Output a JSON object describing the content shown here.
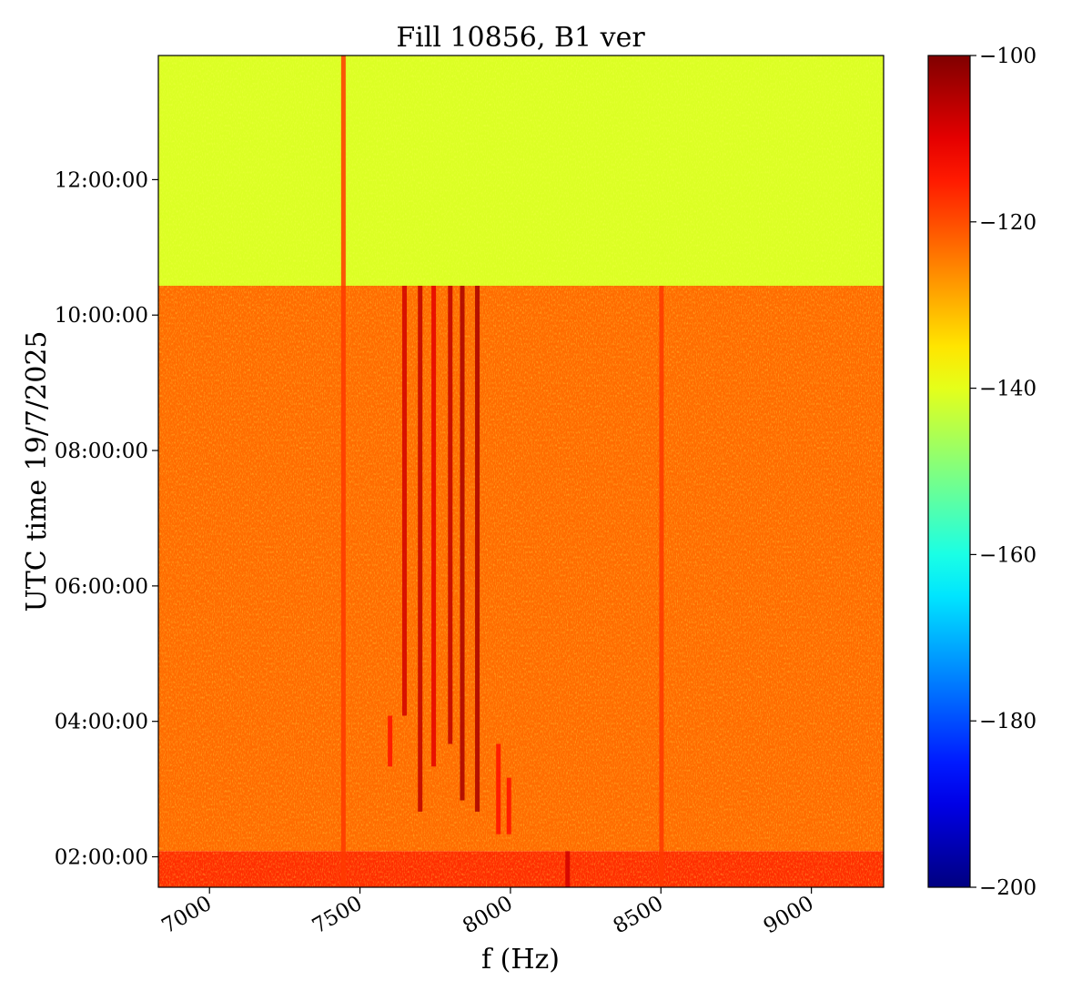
{
  "chart_data": {
    "type": "heatmap",
    "title": "Fill 10856, B1 ver",
    "xlabel": "f (Hz)",
    "ylabel": "UTC time 19/7/2025",
    "xlim": [
      6830,
      9240
    ],
    "ylim": [
      "01:33:00",
      "13:50:00"
    ],
    "x_ticks": [
      7000,
      7500,
      8000,
      8500,
      9000
    ],
    "x_tick_labels": [
      "7000",
      "7500",
      "8000",
      "8500",
      "9000"
    ],
    "x_tick_rotation": "30 degrees",
    "y_ticks": [
      "02:00:00",
      "04:00:00",
      "06:00:00",
      "08:00:00",
      "10:00:00",
      "12:00:00"
    ],
    "y_tick_labels": [
      "02:00:00",
      "04:00:00",
      "06:00:00",
      "08:00:00",
      "10:00:00",
      "12:00:00"
    ],
    "colormap": "jet",
    "colorbar": {
      "range": [
        -200,
        -100
      ],
      "ticks": [
        -100,
        -120,
        -140,
        -160,
        -180,
        -200
      ],
      "tick_labels": [
        "−100",
        "−120",
        "−140",
        "−160",
        "−180",
        "−200"
      ]
    },
    "background_regions": [
      {
        "t_start": "01:33:00",
        "t_end": "02:05:00",
        "level_db": -117
      },
      {
        "t_start": "02:05:00",
        "t_end": "10:26:00",
        "level_db": -123
      },
      {
        "t_start": "10:26:00",
        "t_end": "13:50:00",
        "level_db": -141
      }
    ],
    "lines": [
      {
        "f": 7445,
        "t_start": "01:33:00",
        "t_end": "13:50:00",
        "level_db": -118
      },
      {
        "f": 8502,
        "t_start": "01:33:00",
        "t_end": "10:26:00",
        "level_db": -118
      },
      {
        "f": 7648,
        "t_start": "04:05:00",
        "t_end": "10:26:00",
        "level_db": -108
      },
      {
        "f": 7700,
        "t_start": "02:40:00",
        "t_end": "10:26:00",
        "level_db": -106
      },
      {
        "f": 7745,
        "t_start": "03:20:00",
        "t_end": "10:26:00",
        "level_db": -110
      },
      {
        "f": 7800,
        "t_start": "03:40:00",
        "t_end": "10:26:00",
        "level_db": -106
      },
      {
        "f": 7840,
        "t_start": "02:50:00",
        "t_end": "10:26:00",
        "level_db": -104
      },
      {
        "f": 7890,
        "t_start": "02:40:00",
        "t_end": "10:26:00",
        "level_db": -104
      },
      {
        "f": 7600,
        "t_start": "03:20:00",
        "t_end": "04:05:00",
        "level_db": -114
      },
      {
        "f": 7960,
        "t_start": "02:20:00",
        "t_end": "03:40:00",
        "level_db": -114
      },
      {
        "f": 7995,
        "t_start": "02:20:00",
        "t_end": "03:10:00",
        "level_db": -114
      },
      {
        "f": 8190,
        "t_start": "01:33:00",
        "t_end": "02:05:00",
        "level_db": -108
      }
    ]
  }
}
